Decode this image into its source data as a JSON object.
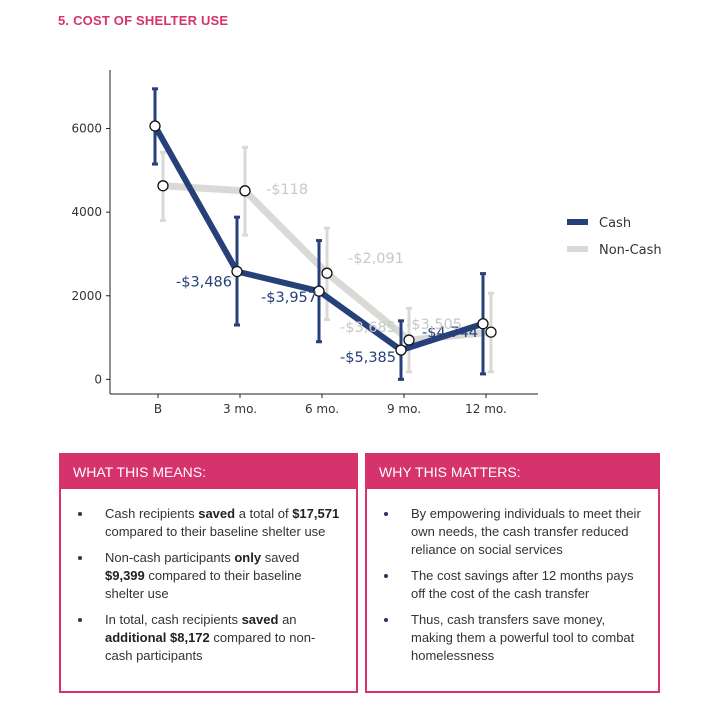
{
  "section": {
    "number": "5.",
    "title": "COST OF SHELTER USE"
  },
  "chart_data": {
    "type": "line",
    "categories": [
      "B",
      "3 mo.",
      "6 mo.",
      "9 mo.",
      "12 mo."
    ],
    "ylim": [
      -350,
      7400
    ],
    "yticks": [
      0,
      2000,
      4000,
      6000
    ],
    "ytick_labels": [
      "0",
      "2000",
      "4000",
      "6000"
    ],
    "legend_position": "right",
    "series": [
      {
        "name": "Cash",
        "color": "#26407a",
        "values": [
          6060,
          2580,
          2110,
          700,
          1330
        ],
        "err_low": [
          5150,
          1300,
          900,
          0,
          130
        ],
        "err_high": [
          6950,
          3880,
          3320,
          1400,
          2530
        ],
        "labels": [
          "",
          "-$3,486",
          "-$3,957",
          "-$5,385",
          "-$4,744"
        ]
      },
      {
        "name": "Non-Cash",
        "color": "#d9d9d6",
        "values": [
          4630,
          4510,
          2540,
          940,
          1130
        ],
        "err_low": [
          3800,
          3450,
          1430,
          180,
          180
        ],
        "err_high": [
          5430,
          5550,
          3620,
          1700,
          2060
        ],
        "labels": [
          "",
          "-$118",
          "-$2,091",
          "-$3,685",
          "-$3,505"
        ]
      }
    ],
    "label_colors": {
      "Cash": "#26407a",
      "Non-Cash": "#c8c8c6"
    }
  },
  "left_box": {
    "header": "WHAT THIS MEANS:",
    "items": [
      {
        "pre": "Cash recipients ",
        "b1": "saved",
        "mid": " a total of ",
        "b2": "$17,571",
        "post": " compared to their baseline shelter use"
      },
      {
        "pre": "Non-cash participants ",
        "b1": "only",
        "mid": " saved ",
        "b2": "$9,399",
        "post": " compared to their baseline shelter use"
      },
      {
        "pre": "In total, cash recipients ",
        "b1": "saved",
        "mid": " an ",
        "b2": "additional $8,172",
        "post": " compared to non-cash participants"
      }
    ]
  },
  "right_box": {
    "header": "WHY THIS MATTERS:",
    "items": [
      "By empowering individuals to meet their own needs, the cash transfer reduced reliance on social services",
      "The cost savings after 12 months pays off the cost of the cash transfer",
      "Thus, cash transfers save money, making them a powerful tool to combat homelessness"
    ]
  }
}
